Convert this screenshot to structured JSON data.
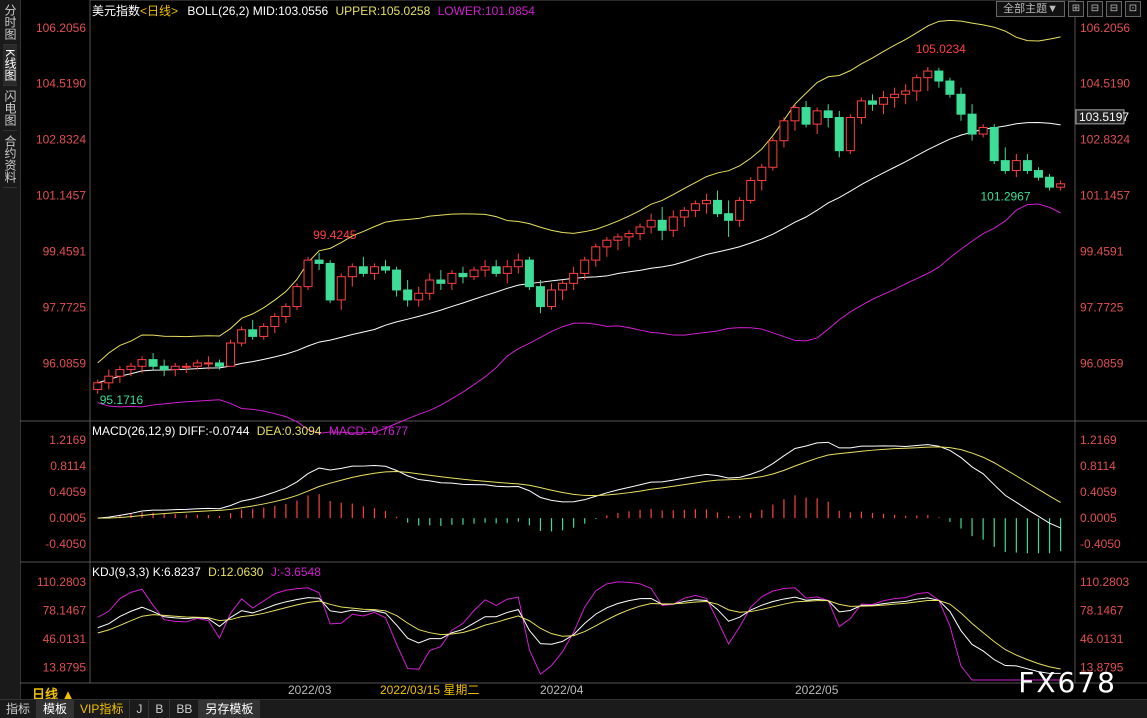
{
  "sidebar": {
    "items": [
      {
        "label": "分时图"
      },
      {
        "label": "K线图"
      },
      {
        "label": "闪电图"
      },
      {
        "label": "合约资料"
      }
    ]
  },
  "toolbar": {
    "theme_label": "全部主题▼",
    "window_buttons": [
      "⊞",
      "⊟",
      "⊟",
      "⊡"
    ]
  },
  "main_panel": {
    "title": "美元指数",
    "period": "<日线>",
    "indicator": "BOLL(26,2)",
    "mid": "MID:103.0556",
    "upper": "UPPER:105.0258",
    "lower": "LOWER:101.0854",
    "y_labels": [
      "106.2056",
      "104.5190",
      "102.8324",
      "101.1457",
      "99.4591",
      "97.7725",
      "96.0859"
    ],
    "last_price": "103.5197",
    "annotations": {
      "high1": "99.4245",
      "high2": "105.0234",
      "low1": "95.1716",
      "low2": "101.2967"
    }
  },
  "macd_panel": {
    "title": "MACD(26,12,9)",
    "diff": "DIFF:-0.0744",
    "dea": "DEA:0.3094",
    "macd": "MACD:-0.7677",
    "y_labels": [
      "1.2169",
      "0.8114",
      "0.4059",
      "0.0005",
      "-0.4050"
    ]
  },
  "kdj_panel": {
    "title": "KDJ(9,3,3)",
    "k": "K:6.8237",
    "d": "D:12.0630",
    "j": "J:-3.6548",
    "y_labels": [
      "110.2803",
      "78.1467",
      "46.0131",
      "13.8795"
    ]
  },
  "x_axis": {
    "labels": [
      "2022/03",
      "2022/03/15 星期二",
      "2022/04",
      "2022/05"
    ]
  },
  "period_label": "日线 ▲",
  "bottom_tabs": [
    "指标",
    "模板",
    "VIP指标",
    "J",
    "B",
    "BB",
    "另存模板"
  ],
  "watermark": "FX678",
  "colors": {
    "up": "#ff4040",
    "down": "#3ddc97",
    "upper": "#e8e060",
    "mid": "#ffffff",
    "lower": "#d020d0"
  },
  "chart_data": {
    "type": "candlestick",
    "ohlc": [
      [
        95.3,
        95.6,
        95.17,
        95.5
      ],
      [
        95.5,
        95.9,
        95.3,
        95.7
      ],
      [
        95.7,
        96.0,
        95.5,
        95.9
      ],
      [
        95.9,
        96.1,
        95.7,
        96.0
      ],
      [
        96.0,
        96.3,
        95.8,
        96.2
      ],
      [
        96.2,
        96.4,
        95.9,
        96.0
      ],
      [
        96.0,
        96.2,
        95.7,
        95.9
      ],
      [
        95.9,
        96.1,
        95.7,
        96.0
      ],
      [
        96.0,
        96.1,
        95.8,
        96.0
      ],
      [
        96.0,
        96.2,
        95.9,
        96.1
      ],
      [
        96.1,
        96.3,
        95.9,
        96.1
      ],
      [
        96.1,
        96.2,
        95.9,
        96.0
      ],
      [
        96.0,
        96.8,
        96.0,
        96.7
      ],
      [
        96.7,
        97.2,
        96.6,
        97.1
      ],
      [
        97.1,
        97.4,
        96.8,
        96.9
      ],
      [
        96.9,
        97.3,
        96.8,
        97.2
      ],
      [
        97.2,
        97.6,
        97.0,
        97.5
      ],
      [
        97.5,
        97.9,
        97.3,
        97.8
      ],
      [
        97.8,
        98.5,
        97.7,
        98.4
      ],
      [
        98.4,
        99.3,
        98.3,
        99.2
      ],
      [
        99.2,
        99.42,
        98.9,
        99.1
      ],
      [
        99.1,
        99.2,
        97.9,
        98.0
      ],
      [
        98.0,
        98.8,
        97.7,
        98.7
      ],
      [
        98.7,
        99.1,
        98.4,
        99.0
      ],
      [
        99.0,
        99.3,
        98.7,
        98.8
      ],
      [
        98.8,
        99.1,
        98.6,
        99.0
      ],
      [
        99.0,
        99.2,
        98.8,
        98.9
      ],
      [
        98.9,
        99.0,
        98.1,
        98.3
      ],
      [
        98.3,
        98.6,
        97.8,
        98.0
      ],
      [
        98.0,
        98.4,
        97.8,
        98.2
      ],
      [
        98.2,
        98.8,
        98.0,
        98.6
      ],
      [
        98.6,
        98.9,
        98.3,
        98.5
      ],
      [
        98.5,
        98.9,
        98.3,
        98.8
      ],
      [
        98.8,
        99.0,
        98.5,
        98.7
      ],
      [
        98.7,
        99.0,
        98.6,
        98.9
      ],
      [
        98.9,
        99.2,
        98.7,
        99.0
      ],
      [
        99.0,
        99.2,
        98.7,
        98.8
      ],
      [
        98.8,
        99.2,
        98.5,
        99.0
      ],
      [
        99.0,
        99.4,
        98.8,
        99.2
      ],
      [
        99.2,
        99.3,
        98.3,
        98.4
      ],
      [
        98.4,
        98.6,
        97.6,
        97.8
      ],
      [
        97.8,
        98.5,
        97.7,
        98.3
      ],
      [
        98.3,
        98.6,
        98.0,
        98.5
      ],
      [
        98.5,
        99.0,
        98.3,
        98.8
      ],
      [
        98.8,
        99.3,
        98.6,
        99.2
      ],
      [
        99.2,
        99.7,
        99.0,
        99.6
      ],
      [
        99.6,
        99.9,
        99.3,
        99.8
      ],
      [
        99.8,
        100.0,
        99.5,
        99.9
      ],
      [
        99.9,
        100.1,
        99.6,
        100.0
      ],
      [
        100.0,
        100.3,
        99.8,
        100.2
      ],
      [
        100.2,
        100.6,
        100.0,
        100.4
      ],
      [
        100.4,
        100.8,
        99.8,
        100.1
      ],
      [
        100.1,
        100.7,
        99.9,
        100.5
      ],
      [
        100.5,
        100.8,
        100.2,
        100.7
      ],
      [
        100.7,
        101.0,
        100.5,
        100.9
      ],
      [
        100.9,
        101.2,
        100.6,
        101.0
      ],
      [
        101.0,
        101.3,
        100.5,
        100.6
      ],
      [
        100.6,
        101.0,
        99.9,
        100.4
      ],
      [
        100.4,
        101.1,
        100.2,
        101.0
      ],
      [
        101.0,
        101.7,
        100.9,
        101.6
      ],
      [
        101.6,
        102.1,
        101.3,
        102.0
      ],
      [
        102.0,
        102.9,
        101.9,
        102.8
      ],
      [
        102.8,
        103.5,
        102.6,
        103.4
      ],
      [
        103.4,
        103.9,
        103.1,
        103.8
      ],
      [
        103.8,
        104.0,
        103.2,
        103.3
      ],
      [
        103.3,
        103.8,
        103.0,
        103.7
      ],
      [
        103.7,
        103.9,
        103.2,
        103.5
      ],
      [
        103.5,
        103.7,
        102.3,
        102.5
      ],
      [
        102.5,
        103.6,
        102.4,
        103.5
      ],
      [
        103.5,
        104.1,
        103.3,
        104.0
      ],
      [
        104.0,
        104.2,
        103.7,
        103.9
      ],
      [
        103.9,
        104.3,
        103.6,
        104.1
      ],
      [
        104.1,
        104.4,
        103.8,
        104.2
      ],
      [
        104.2,
        104.5,
        103.9,
        104.3
      ],
      [
        104.3,
        104.8,
        104.0,
        104.7
      ],
      [
        104.7,
        105.02,
        104.3,
        104.9
      ],
      [
        104.9,
        105.0,
        104.4,
        104.6
      ],
      [
        104.6,
        104.7,
        104.1,
        104.2
      ],
      [
        104.2,
        104.4,
        103.4,
        103.6
      ],
      [
        103.6,
        103.9,
        102.8,
        103.0
      ],
      [
        103.0,
        103.3,
        102.9,
        103.2
      ],
      [
        103.2,
        103.3,
        102.1,
        102.2
      ],
      [
        102.2,
        102.6,
        101.8,
        101.9
      ],
      [
        101.9,
        102.4,
        101.7,
        102.2
      ],
      [
        102.2,
        102.4,
        101.8,
        101.9
      ],
      [
        101.9,
        102.0,
        101.6,
        101.7
      ],
      [
        101.7,
        101.8,
        101.3,
        101.4
      ],
      [
        101.4,
        101.6,
        101.3,
        101.5
      ]
    ],
    "y_range": [
      94.5,
      106.5
    ],
    "x_ticks": [
      "2022/03",
      "2022/04",
      "2022/05"
    ]
  }
}
